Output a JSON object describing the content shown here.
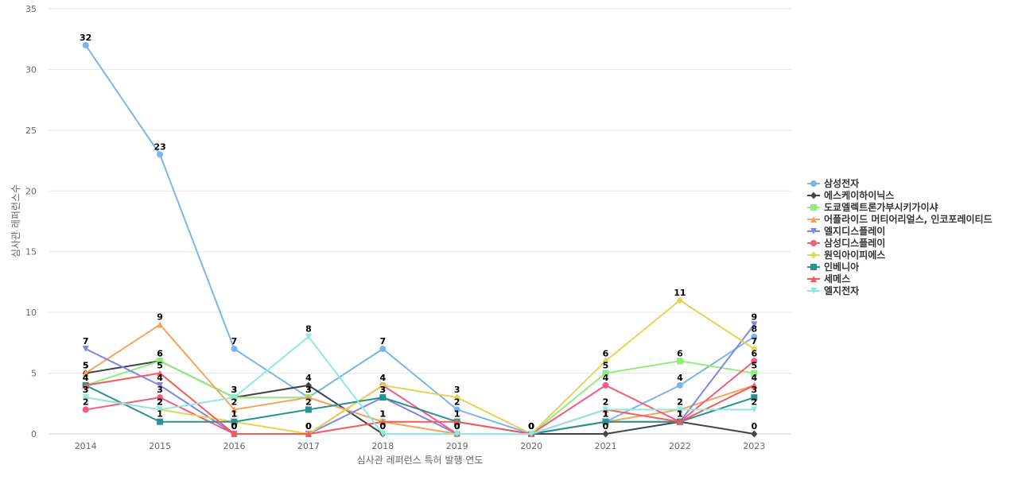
{
  "chart_data": {
    "type": "line",
    "title": "",
    "xlabel": "심사관 레퍼런스 특허 발행 연도",
    "ylabel": "심사관 레퍼런스수",
    "ylim": [
      0,
      35
    ],
    "yticks": [
      0,
      5,
      10,
      15,
      20,
      25,
      30,
      35
    ],
    "categories": [
      "2014",
      "2015",
      "2016",
      "2017",
      "2018",
      "2019",
      "2020",
      "2021",
      "2022",
      "2023"
    ],
    "grid": true,
    "legend_position": "right",
    "data_labels": true,
    "series": [
      {
        "name": "삼성전자",
        "color": "#7cb5ec",
        "marker": "circle",
        "values": [
          32,
          23,
          7,
          3,
          7,
          2,
          0,
          1,
          4,
          8
        ]
      },
      {
        "name": "에스케이하이닉스",
        "color": "#434348",
        "marker": "diamond",
        "values": [
          5,
          6,
          3,
          4,
          0,
          0,
          0,
          0,
          1,
          0
        ]
      },
      {
        "name": "도쿄엘렉트론가부시키가이샤",
        "color": "#90ed7d",
        "marker": "square",
        "values": [
          4,
          6,
          3,
          3,
          1,
          0,
          0,
          5,
          6,
          5
        ]
      },
      {
        "name": "어플라이드 머티어리얼스, 인코포레이티드",
        "color": "#f7a35c",
        "marker": "triangle",
        "values": [
          5,
          9,
          2,
          3,
          1,
          0,
          0,
          1,
          2,
          4
        ]
      },
      {
        "name": "엘지디스플레이",
        "color": "#8085e9",
        "marker": "triangle-down",
        "values": [
          7,
          4,
          0,
          0,
          3,
          0,
          0,
          1,
          1,
          9
        ]
      },
      {
        "name": "삼성디스플레이",
        "color": "#f15c80",
        "marker": "circle",
        "values": [
          2,
          3,
          0,
          0,
          4,
          0,
          0,
          4,
          1,
          6
        ]
      },
      {
        "name": "원익아이피에스",
        "color": "#e4d354",
        "marker": "diamond",
        "values": [
          3,
          2,
          1,
          0,
          4,
          3,
          0,
          6,
          11,
          7
        ]
      },
      {
        "name": "인베니아",
        "color": "#2b908f",
        "marker": "square",
        "values": [
          4,
          1,
          1,
          2,
          3,
          1,
          0,
          1,
          1,
          3
        ]
      },
      {
        "name": "세메스",
        "color": "#f45b5b",
        "marker": "triangle",
        "values": [
          4,
          5,
          0,
          0,
          1,
          1,
          0,
          2,
          1,
          4
        ]
      },
      {
        "name": "엘지전자",
        "color": "#91e8e1",
        "marker": "triangle-down",
        "values": [
          3,
          2,
          3,
          8,
          0,
          0,
          0,
          2,
          2,
          2
        ]
      }
    ]
  }
}
